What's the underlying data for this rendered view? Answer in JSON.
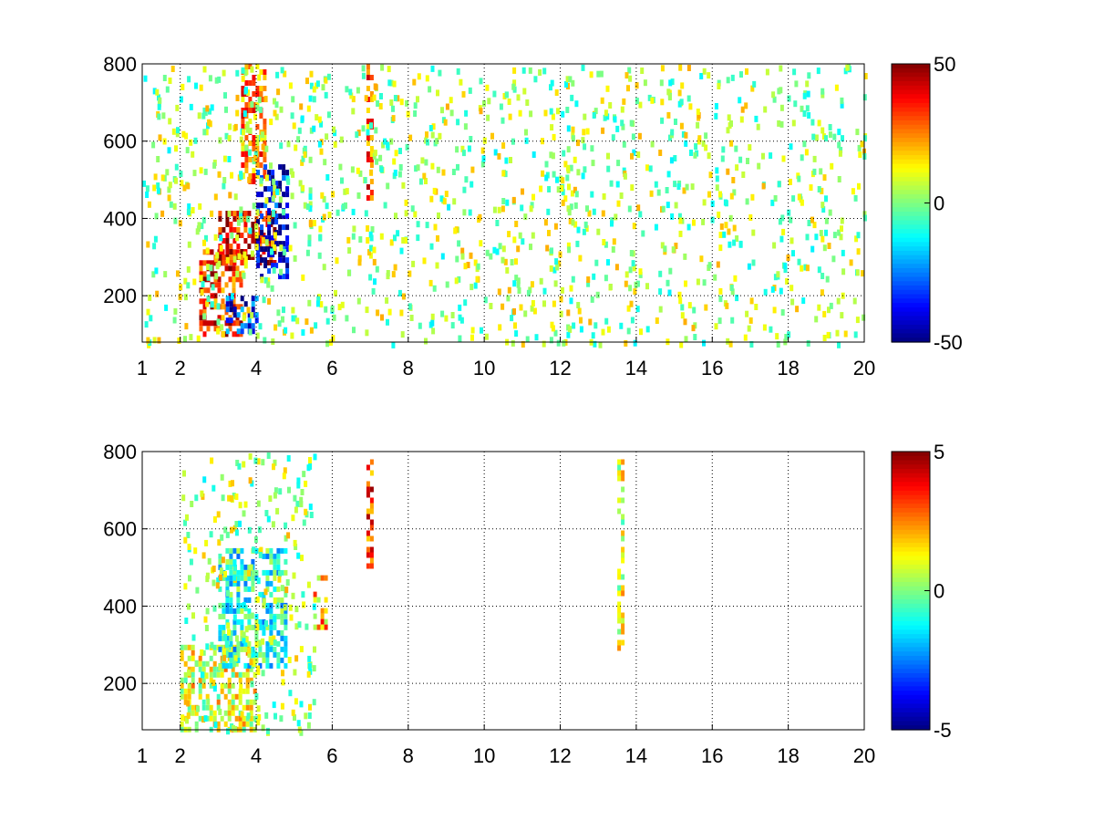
{
  "chart_data": [
    {
      "type": "heatmap",
      "title": "",
      "xlabel": "",
      "ylabel": "",
      "xlim": [
        1,
        20
      ],
      "ylim": [
        80,
        800
      ],
      "x_ticks": [
        1,
        2,
        4,
        6,
        8,
        10,
        12,
        14,
        16,
        18,
        20
      ],
      "y_ticks": [
        200,
        400,
        600,
        800
      ],
      "grid": true,
      "colormap": "jet",
      "colorbar": {
        "clim": [
          -50,
          50
        ],
        "ticks": [
          50,
          0,
          -50
        ]
      },
      "features": [
        {
          "x": [
            2.5,
            3.6
          ],
          "y": [
            100,
            320
          ],
          "value": 35
        },
        {
          "x": [
            3.0,
            4.5
          ],
          "y": [
            280,
            420
          ],
          "value": 40
        },
        {
          "x": [
            3.6,
            4.2
          ],
          "y": [
            500,
            800
          ],
          "value": 25
        },
        {
          "x": [
            3.2,
            4.0
          ],
          "y": [
            110,
            200
          ],
          "value": -35
        },
        {
          "x": [
            4.0,
            4.8
          ],
          "y": [
            250,
            540
          ],
          "value": -40
        },
        {
          "x": [
            6.9,
            7.0
          ],
          "y": [
            450,
            800
          ],
          "value": 30
        }
      ]
    },
    {
      "type": "heatmap",
      "title": "",
      "xlabel": "",
      "ylabel": "",
      "xlim": [
        1,
        20
      ],
      "ylim": [
        80,
        800
      ],
      "x_ticks": [
        1,
        2,
        4,
        6,
        8,
        10,
        12,
        14,
        16,
        18,
        20
      ],
      "y_ticks": [
        200,
        400,
        600,
        800
      ],
      "grid": true,
      "colormap": "jet",
      "colorbar": {
        "clim": [
          -5,
          5
        ],
        "ticks": [
          5,
          0,
          -5
        ]
      },
      "features": [
        {
          "x": [
            2.0,
            4.0
          ],
          "y": [
            80,
            300
          ],
          "value": 1
        },
        {
          "x": [
            3.0,
            4.8
          ],
          "y": [
            250,
            550
          ],
          "value": -1
        },
        {
          "x": [
            5.5,
            5.8
          ],
          "y": [
            350,
            480
          ],
          "value": 2
        },
        {
          "x": [
            6.9,
            7.0
          ],
          "y": [
            500,
            780
          ],
          "value": 3
        },
        {
          "x": [
            13.5,
            13.6
          ],
          "y": [
            280,
            780
          ],
          "value": 1
        }
      ]
    }
  ]
}
